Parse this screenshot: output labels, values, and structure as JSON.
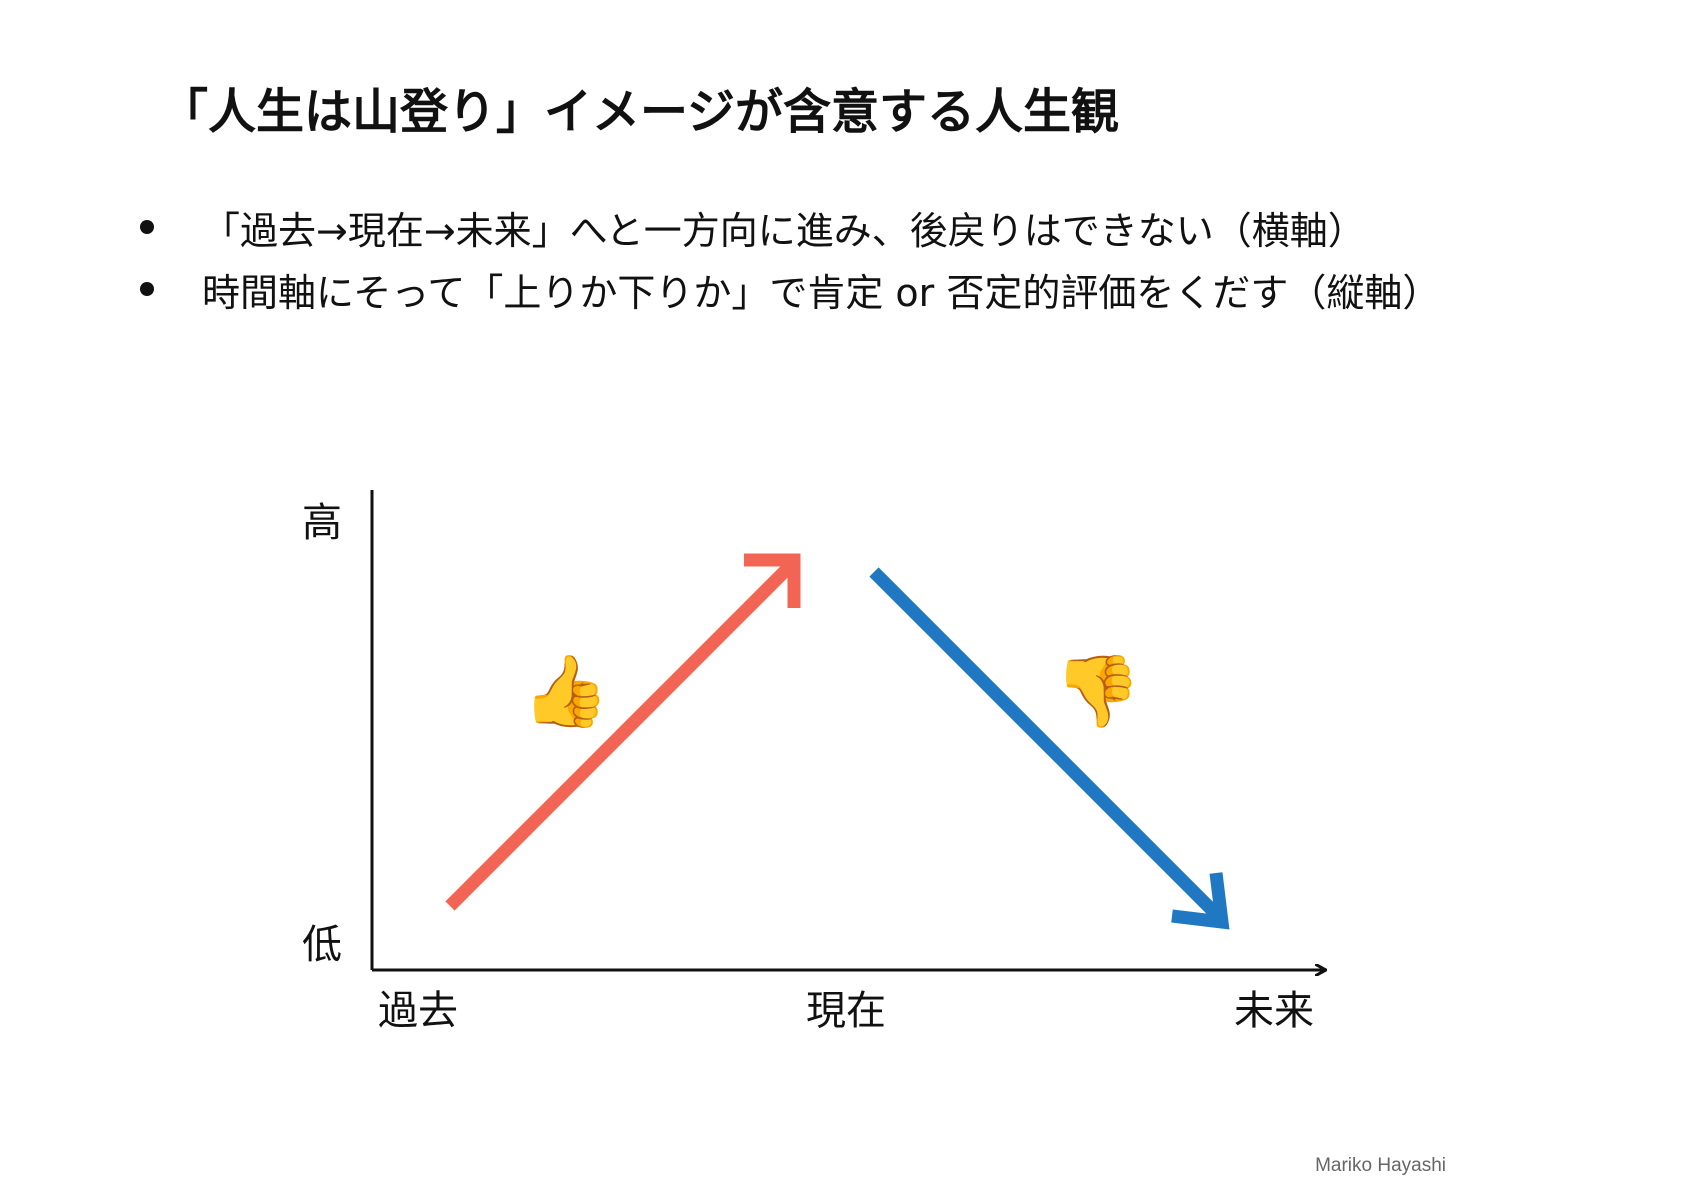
{
  "title": "「人生は山登り」イメージが含意する人生観",
  "bullets": [
    "「過去→現在→未来」へと一方向に進み、後戻りはできない（横軸）",
    "時間軸にそって「上りか下りか」で肯定 or 否定的評価をくだす（縦軸）"
  ],
  "diagram": {
    "y_axis": {
      "high_label": "高",
      "low_label": "低"
    },
    "x_axis": {
      "labels": [
        "過去",
        "現在",
        "未来"
      ]
    },
    "arrows": [
      {
        "name": "rising",
        "color": "#f26555"
      },
      {
        "name": "falling",
        "color": "#1f78c1"
      }
    ],
    "icons": [
      {
        "name": "thumbs-up-icon",
        "glyph": "👍"
      },
      {
        "name": "thumbs-down-icon",
        "glyph": "👎"
      }
    ]
  },
  "author": "Mariko Hayashi"
}
